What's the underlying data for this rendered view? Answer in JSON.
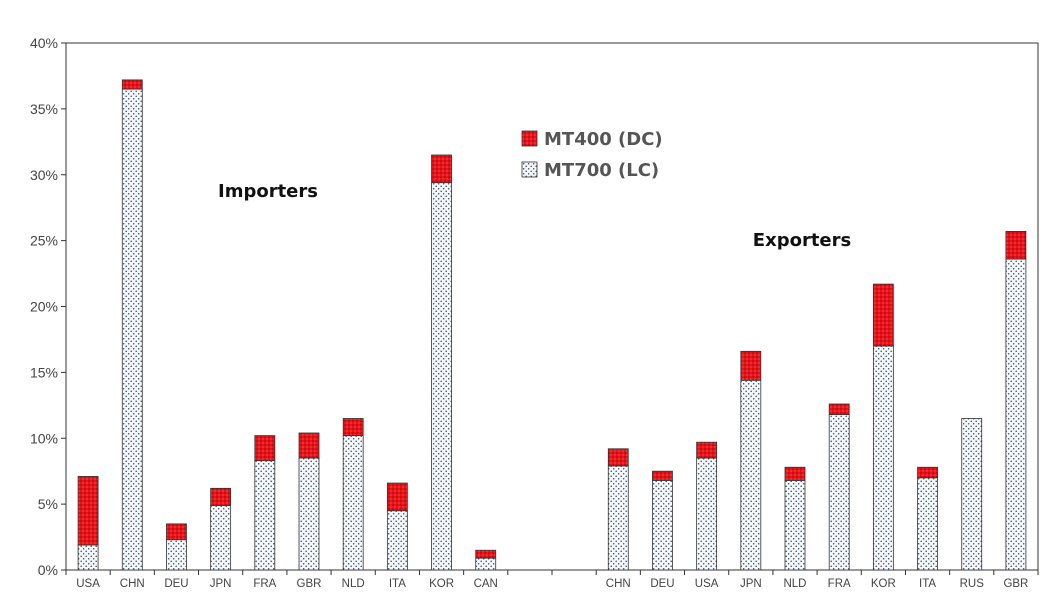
{
  "chart_data": {
    "type": "bar",
    "stacked": true,
    "categories": [
      "USA",
      "CHN",
      "DEU",
      "JPN",
      "FRA",
      "GBR",
      "NLD",
      "ITA",
      "KOR",
      "CAN",
      "",
      "",
      "CHN",
      "DEU",
      "USA",
      "JPN",
      "NLD",
      "FRA",
      "KOR",
      "ITA",
      "RUS",
      "GBR"
    ],
    "series": [
      {
        "name": "MT700 (LC)",
        "color": "#ffffff",
        "pattern": "dots",
        "values": [
          1.9,
          36.5,
          2.3,
          4.9,
          8.3,
          8.5,
          10.2,
          4.5,
          29.4,
          0.9,
          null,
          null,
          7.9,
          6.8,
          8.5,
          14.4,
          6.8,
          11.8,
          17.0,
          7.0,
          11.5,
          23.6
        ]
      },
      {
        "name": "MT400 (DC)",
        "color": "#e8141a",
        "pattern": "dots",
        "values": [
          5.2,
          0.7,
          1.2,
          1.3,
          1.9,
          1.9,
          1.3,
          2.1,
          2.1,
          0.6,
          null,
          null,
          1.3,
          0.7,
          1.2,
          2.2,
          1.0,
          0.8,
          4.7,
          0.8,
          0.0,
          2.1
        ]
      }
    ],
    "ylim": [
      0,
      40
    ],
    "yticks": [
      0,
      5,
      10,
      15,
      20,
      25,
      30,
      35,
      40
    ],
    "ytick_labels": [
      "0%",
      "5%",
      "10%",
      "15%",
      "20%",
      "25%",
      "30%",
      "35%",
      "40%"
    ],
    "annotations": [
      "Importers",
      "Exporters"
    ],
    "legend": {
      "placement": "center-top",
      "entries": [
        "MT400 (DC)",
        "MT700 (LC)"
      ]
    },
    "grid": false,
    "title": "",
    "xlabel": "",
    "ylabel": ""
  }
}
